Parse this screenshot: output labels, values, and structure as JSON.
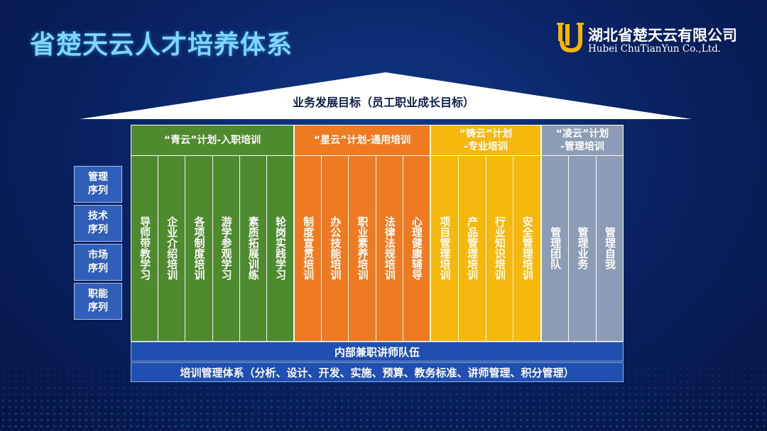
{
  "title": "省楚天云人才培养体系",
  "logo": {
    "name_cn": "湖北省楚天云有限公司",
    "name_en": "Hubei ChuTianYun Co.,Ltd.",
    "mark_color": "#f5b400"
  },
  "roof": {
    "label": "业务发展目标（员工职业成长目标）"
  },
  "side_items": [
    "管理序列",
    "技术序列",
    "市场序列",
    "职能序列"
  ],
  "groups": [
    {
      "head": "“青云”计划-入职培训",
      "color": "#4e8a2e",
      "items": [
        "导师带教学习",
        "企业介绍培训",
        "各项制度培训",
        "游学参观学习",
        "素质拓展训练",
        "轮岗实践学习"
      ]
    },
    {
      "head": "“星云”计划-通用培训",
      "color": "#ee7a22",
      "items": [
        "制度宣贯培训",
        "办公技能培训",
        "职业素养培训",
        "法律法规培训",
        "心理健康辅导"
      ]
    },
    {
      "head": "“铸云”计划-专业培训",
      "head_lines": [
        "“铸云”计划",
        "-专业培训"
      ],
      "color": "#f6b80c",
      "items": [
        "项目管理培训",
        "产品管理培训",
        "行业知识培训",
        "安全管理培训"
      ]
    },
    {
      "head": "“凌云”计划-管理培训",
      "head_lines": [
        "“凌云”计划",
        "-管理培训"
      ],
      "color": "#8c9cb6",
      "items": [
        "管理团队",
        "管理业务",
        "管理自我"
      ]
    }
  ],
  "foundation": {
    "team": "内部兼职讲师队伍",
    "system": "培训管理体系（分析、设计、开发、实施、预算、教务标准、讲师管理、积分管理）"
  }
}
